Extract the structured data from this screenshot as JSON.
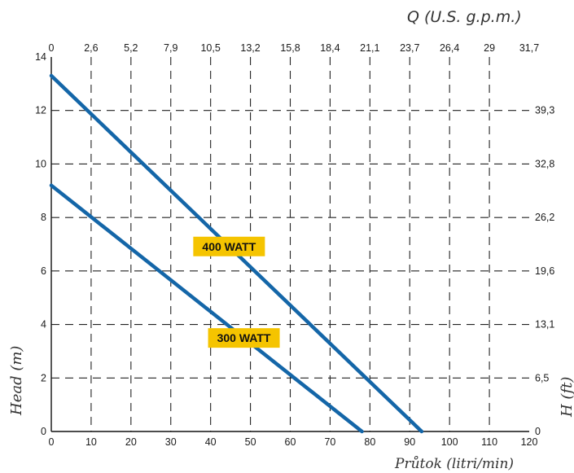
{
  "chart_data": {
    "type": "line",
    "x_bottom": {
      "label": "Průtok (litri/min)",
      "range": [
        0,
        120
      ],
      "ticks": [
        "0",
        "10",
        "20",
        "30",
        "40",
        "50",
        "60",
        "70",
        "80",
        "90",
        "100",
        "110",
        "120"
      ]
    },
    "x_top": {
      "label": "Q (U.S. g.p.m.)",
      "ticks": [
        "0",
        "2,6",
        "5,2",
        "7,9",
        "10,5",
        "13,2",
        "15,8",
        "18,4",
        "21,1",
        "23,7",
        "26,4",
        "29",
        "31,7"
      ]
    },
    "y_left": {
      "label": "Head (m)",
      "range": [
        0,
        14
      ],
      "ticks": [
        "0",
        "2",
        "4",
        "6",
        "8",
        "10",
        "12",
        "14"
      ]
    },
    "y_right": {
      "label": "H (ft)",
      "ticks": [
        "0",
        "6,5",
        "13,1",
        "19,6",
        "26,2",
        "32,8",
        "39,3"
      ]
    },
    "grid": true,
    "series": [
      {
        "name": "400 WATT",
        "color": "#1466a8",
        "label_bg": "#f5c400",
        "x": [
          0,
          93
        ],
        "y": [
          13.3,
          0
        ]
      },
      {
        "name": "300 WATT",
        "color": "#1466a8",
        "label_bg": "#f5c400",
        "x": [
          0,
          78
        ],
        "y": [
          9.2,
          0
        ]
      }
    ]
  }
}
